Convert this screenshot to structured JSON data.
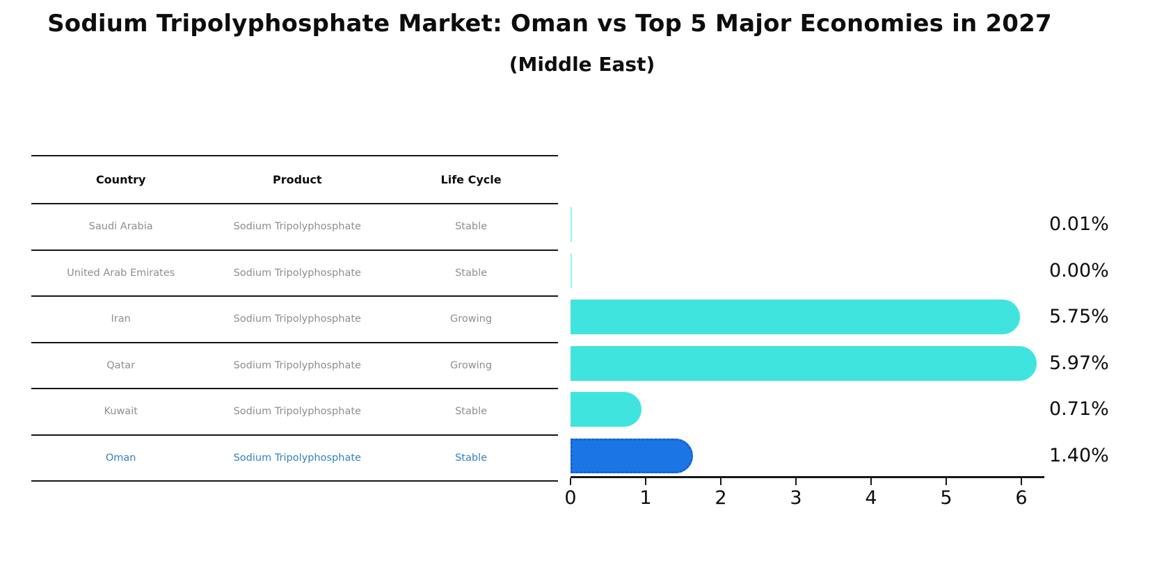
{
  "title": "Sodium Tripolyphosphate Market: Oman vs Top 5 Major Economies in 2027",
  "subtitle": "(Middle East)",
  "table": {
    "headers": [
      "Country",
      "Product",
      "Life Cycle"
    ],
    "rows": [
      {
        "country": "Saudi Arabia",
        "product": "Sodium Tripolyphosphate",
        "life_cycle": "Stable",
        "highlighted": false
      },
      {
        "country": "United Arab Emirates",
        "product": "Sodium Tripolyphosphate",
        "life_cycle": "Stable",
        "highlighted": false
      },
      {
        "country": "Iran",
        "product": "Sodium Tripolyphosphate",
        "life_cycle": "Growing",
        "highlighted": false
      },
      {
        "country": "Qatar",
        "product": "Sodium Tripolyphosphate",
        "life_cycle": "Growing",
        "highlighted": false
      },
      {
        "country": "Kuwait",
        "product": "Sodium Tripolyphosphate",
        "life_cycle": "Stable",
        "highlighted": false
      },
      {
        "country": "Oman",
        "product": "Sodium Tripolyphosphate",
        "life_cycle": "Stable",
        "highlighted": true
      }
    ]
  },
  "chart_data": {
    "type": "bar",
    "orientation": "horizontal",
    "title": "Sodium Tripolyphosphate Market: Oman vs Top 5 Major Economies in 2027 (Middle East)",
    "categories": [
      "Saudi Arabia",
      "United Arab Emirates",
      "Iran",
      "Qatar",
      "Kuwait",
      "Oman"
    ],
    "values": [
      0.01,
      0.0,
      5.75,
      5.97,
      0.71,
      1.4
    ],
    "value_labels": [
      "0.01%",
      "0.00%",
      "5.75%",
      "5.97%",
      "0.71%",
      "1.40%"
    ],
    "highlight_category": "Oman",
    "highlight_index": 5,
    "xlim": [
      0,
      6.3
    ],
    "x_ticks": [
      "0",
      "1",
      "2",
      "3",
      "4",
      "5",
      "6"
    ],
    "grid": false,
    "legend": false
  },
  "colors": {
    "bar": "#40e4de",
    "highlight_bar": "#1c75e5",
    "highlight_text": "#3182bd",
    "row_text": "#8e8e8e",
    "axis": "#161616"
  }
}
